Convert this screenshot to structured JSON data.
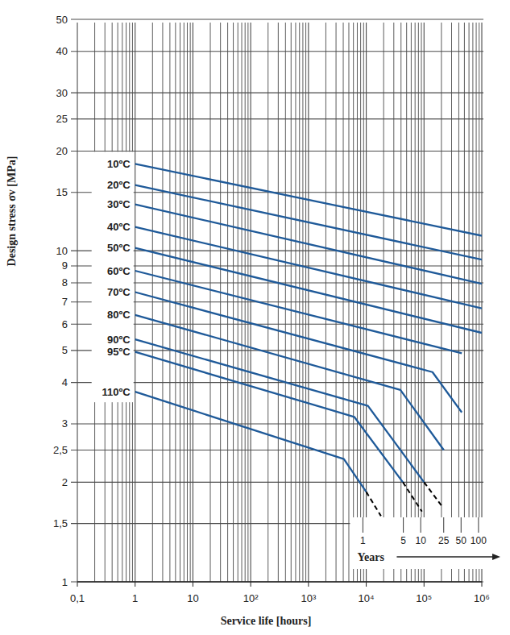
{
  "chart_data": {
    "type": "line",
    "xlabel": "Service life [hours]",
    "ylabel": "Design stress σv [MPa]",
    "log": true,
    "grid": true,
    "xlim": [
      0.1,
      1000000
    ],
    "ylim": [
      1,
      50
    ],
    "xticks": [
      {
        "value": 0.1,
        "label": "0,1"
      },
      1,
      10,
      {
        "value": 100,
        "label": "10²"
      },
      {
        "value": 1000,
        "label": "10³"
      },
      {
        "value": 10000,
        "label": "10⁴"
      },
      {
        "value": 100000,
        "label": "10⁵"
      },
      {
        "value": 1000000,
        "label": "10⁶"
      }
    ],
    "yticks": [
      1,
      {
        "value": 1.5,
        "label": "1,5"
      },
      2,
      {
        "value": 2.5,
        "label": "2,5"
      },
      3,
      4,
      5,
      6,
      7,
      8,
      9,
      10,
      15,
      20,
      25,
      30,
      40,
      50
    ],
    "x2label": "Years",
    "x2ticks": [
      {
        "value": 8760,
        "label": "1"
      },
      {
        "value": 43800,
        "label": "5"
      },
      {
        "value": 87600,
        "label": "10"
      },
      {
        "value": 219000,
        "label": "25"
      },
      {
        "value": 438000,
        "label": "50"
      },
      {
        "value": 876000,
        "label": "100"
      }
    ],
    "series": [
      {
        "name": "10ºC",
        "color": "#1f5a99",
        "x": [
          1,
          1000000
        ],
        "values": [
          18.3,
          11.1
        ]
      },
      {
        "name": "20ºC",
        "color": "#1f5a99",
        "x": [
          1,
          1000000
        ],
        "values": [
          15.8,
          9.4
        ]
      },
      {
        "name": "30ºC",
        "color": "#1f5a99",
        "x": [
          1,
          1000000
        ],
        "values": [
          13.8,
          7.95
        ]
      },
      {
        "name": "40ºC",
        "color": "#1f5a99",
        "x": [
          1,
          1000000
        ],
        "values": [
          11.8,
          6.7
        ]
      },
      {
        "name": "50ºC",
        "color": "#1f5a99",
        "x": [
          1,
          1000000
        ],
        "values": [
          10.2,
          5.65
        ]
      },
      {
        "name": "60ºC",
        "color": "#1f5a99",
        "x": [
          1,
          450000
        ],
        "values": [
          8.7,
          4.9
        ]
      },
      {
        "name": "70ºC",
        "color": "#1f5a99",
        "x": [
          1,
          140000,
          450000
        ],
        "values": [
          7.5,
          4.3,
          3.25
        ]
      },
      {
        "name": "80ºC",
        "color": "#1f5a99",
        "x": [
          1,
          39000,
          220000
        ],
        "values": [
          6.4,
          3.8,
          2.5
        ]
      },
      {
        "name": "90ºC",
        "color": "#1f5a99",
        "x": [
          1,
          10700,
          100000
        ],
        "values": [
          5.4,
          3.4,
          2.0
        ]
      },
      {
        "name": "95ºC",
        "color": "#1f5a99",
        "x": [
          1,
          6200,
          43000
        ],
        "values": [
          4.95,
          3.15,
          2.0
        ]
      },
      {
        "name": "110ºC",
        "color": "#1f5a99",
        "x": [
          1,
          4100,
          10000
        ],
        "values": [
          3.75,
          2.35,
          1.87
        ]
      },
      {
        "color": "#000000",
        "line_style": "dashed",
        "x": [
          100000,
          200000
        ],
        "values": [
          2.0,
          1.7
        ]
      },
      {
        "color": "#000000",
        "line_style": "dashed",
        "x": [
          43000,
          92000
        ],
        "values": [
          2.0,
          1.63
        ]
      },
      {
        "color": "#000000",
        "line_style": "dashed",
        "x": [
          10000,
          18000
        ],
        "values": [
          1.87,
          1.58
        ]
      }
    ]
  }
}
